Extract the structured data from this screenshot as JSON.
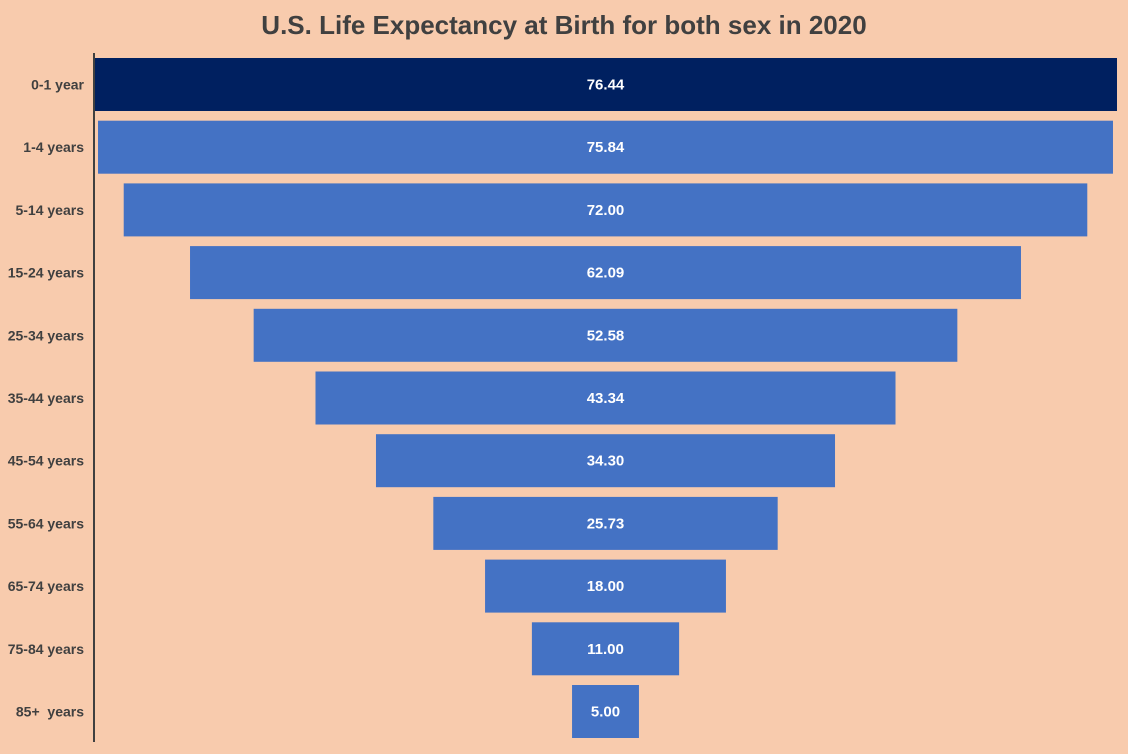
{
  "chart_data": {
    "type": "bar",
    "orientation": "horizontal-funnel",
    "title": "U.S. Life Expectancy at Birth for both sex in 2020",
    "xlabel": "",
    "ylabel": "",
    "categories": [
      "0-1 year",
      "1-4 years",
      "5-14 years",
      "15-24 years",
      "25-34 years",
      "35-44 years",
      "45-54 years",
      "55-64 years",
      "65-74 years",
      "75-84 years",
      "85+  years"
    ],
    "values": [
      76.44,
      75.84,
      72.0,
      62.09,
      52.58,
      43.34,
      34.3,
      25.73,
      18.0,
      11.0,
      5.0
    ],
    "value_labels": [
      "76.44",
      "75.84",
      "72.00",
      "62.09",
      "52.58",
      "43.34",
      "34.30",
      "25.73",
      "18.00",
      "11.00",
      "5.00"
    ],
    "xlim": [
      0,
      76.44
    ],
    "grid": false,
    "legend": "none",
    "colors": {
      "highlight": "#002060",
      "bar": "#4472c4",
      "background": "#f8cbad",
      "axis": "#404040"
    }
  }
}
